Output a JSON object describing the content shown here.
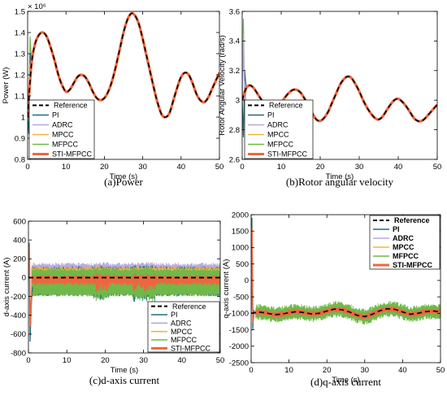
{
  "chart_data": [
    {
      "id": "a",
      "type": "line",
      "caption": "(a)Power",
      "xlabel": "Time (s)",
      "ylabel": "Power (W)",
      "exponent_label": "× 10⁶",
      "xlim": [
        0,
        50
      ],
      "ylim": [
        0.8,
        1.5
      ],
      "xticks": [
        0,
        10,
        20,
        30,
        40,
        50
      ],
      "yticks": [
        0.8,
        0.9,
        1,
        1.1,
        1.2,
        1.3,
        1.4,
        1.5
      ],
      "ytick_labels": [
        "0.8",
        "0.9",
        "1",
        "1.1",
        "1.2",
        "1.3",
        "1.4",
        "1.5"
      ],
      "legend_position": "bottom-left",
      "series": [
        {
          "name": "Reference",
          "color": "#000000",
          "style": "dashed"
        },
        {
          "name": "PI",
          "color": "#1f6f78"
        },
        {
          "name": "ADRC",
          "color": "#b9a7e0"
        },
        {
          "name": "MPCC",
          "color": "#f1b53b"
        },
        {
          "name": "MFPCC",
          "color": "#71b84a"
        },
        {
          "name": "STI-MFPCC",
          "color": "#ee6640"
        }
      ],
      "reference": {
        "x": [
          0,
          1,
          2,
          3,
          4,
          5,
          6,
          7,
          8,
          9,
          10,
          11,
          12,
          13,
          14,
          15,
          16,
          17,
          18,
          19,
          20,
          21,
          22,
          23,
          24,
          25,
          26,
          27,
          28,
          29,
          30,
          31,
          32,
          33,
          34,
          35,
          36,
          37,
          38,
          39,
          40,
          41,
          42,
          43,
          44,
          45,
          46,
          47,
          48,
          49,
          50
        ],
        "y": [
          1.0,
          1.25,
          1.35,
          1.39,
          1.4,
          1.38,
          1.33,
          1.27,
          1.2,
          1.15,
          1.12,
          1.13,
          1.16,
          1.19,
          1.2,
          1.19,
          1.16,
          1.12,
          1.09,
          1.08,
          1.09,
          1.12,
          1.17,
          1.24,
          1.32,
          1.4,
          1.46,
          1.49,
          1.48,
          1.44,
          1.37,
          1.29,
          1.21,
          1.13,
          1.06,
          1.01,
          1.0,
          1.02,
          1.08,
          1.14,
          1.19,
          1.21,
          1.2,
          1.16,
          1.11,
          1.08,
          1.07,
          1.09,
          1.13,
          1.17,
          1.21
        ]
      }
    },
    {
      "id": "b",
      "type": "line",
      "caption": "(b)Rotor angular velocity",
      "xlabel": "Time (s)",
      "ylabel": "Rotor Angular Velocity (rad/s)",
      "xlim": [
        0,
        50
      ],
      "ylim": [
        2.6,
        3.6
      ],
      "xticks": [
        0,
        10,
        20,
        30,
        40,
        50
      ],
      "yticks": [
        2.6,
        2.8,
        3,
        3.2,
        3.4,
        3.6
      ],
      "ytick_labels": [
        "2.6",
        "2.8",
        "3",
        "3.2",
        "3.4",
        "3.6"
      ],
      "legend_position": "bottom-left",
      "series": [
        {
          "name": "Reference",
          "color": "#000000",
          "style": "dashed"
        },
        {
          "name": "PI",
          "color": "#1f6f78"
        },
        {
          "name": "ADRC",
          "color": "#b9a7e0"
        },
        {
          "name": "MPCC",
          "color": "#f1b53b"
        },
        {
          "name": "MFPCC",
          "color": "#71b84a"
        },
        {
          "name": "STI-MFPCC",
          "color": "#ee6640"
        }
      ],
      "reference": {
        "x": [
          0,
          1,
          2,
          3,
          4,
          5,
          6,
          7,
          8,
          9,
          10,
          11,
          12,
          13,
          14,
          15,
          16,
          17,
          18,
          19,
          20,
          21,
          22,
          23,
          24,
          25,
          26,
          27,
          28,
          29,
          30,
          31,
          32,
          33,
          34,
          35,
          36,
          37,
          38,
          39,
          40,
          41,
          42,
          43,
          44,
          45,
          46,
          47,
          48,
          49,
          50
        ],
        "y": [
          3.0,
          3.08,
          3.1,
          3.08,
          3.04,
          3.0,
          2.96,
          2.93,
          2.92,
          2.94,
          2.98,
          3.02,
          3.05,
          3.07,
          3.07,
          3.05,
          3.01,
          2.96,
          2.91,
          2.87,
          2.86,
          2.88,
          2.92,
          2.98,
          3.04,
          3.1,
          3.14,
          3.16,
          3.15,
          3.11,
          3.06,
          3.0,
          2.95,
          2.91,
          2.88,
          2.87,
          2.89,
          2.93,
          2.97,
          3.0,
          3.01,
          2.99,
          2.96,
          2.92,
          2.88,
          2.86,
          2.86,
          2.88,
          2.91,
          2.94,
          2.97
        ]
      }
    },
    {
      "id": "c",
      "type": "line",
      "caption": "(c)d-axis current",
      "xlabel": "Time (s)",
      "ylabel": "d-axis current (A)",
      "xlim": [
        0,
        50
      ],
      "ylim": [
        -800,
        600
      ],
      "xticks": [
        0,
        10,
        20,
        30,
        40,
        50
      ],
      "yticks": [
        -800,
        -600,
        -400,
        -200,
        0,
        200,
        400,
        600
      ],
      "ytick_labels": [
        "-800",
        "-600",
        "-400",
        "-200",
        "0",
        "200",
        "400",
        "600"
      ],
      "legend_position": "bottom-right",
      "series": [
        {
          "name": "Reference",
          "color": "#000000",
          "style": "dashed",
          "value": 0
        },
        {
          "name": "PI",
          "color": "#1f6f78",
          "band": [
            -200,
            120
          ]
        },
        {
          "name": "ADRC",
          "color": "#b9a7e0",
          "band": [
            -150,
            160
          ]
        },
        {
          "name": "MPCC",
          "color": "#f1b53b",
          "band": [
            -120,
            120
          ]
        },
        {
          "name": "MFPCC",
          "color": "#71b84a",
          "band": [
            -200,
            100
          ]
        },
        {
          "name": "STI-MFPCC",
          "color": "#ee6640",
          "band": [
            -80,
            30
          ]
        }
      ]
    },
    {
      "id": "d",
      "type": "line",
      "caption": "(d)q-axis current",
      "xlabel": "Time (s)",
      "ylabel": "q-axis current (A)",
      "xlim": [
        0,
        50
      ],
      "ylim": [
        -2500,
        2000
      ],
      "xticks": [
        0,
        10,
        20,
        30,
        40,
        50
      ],
      "yticks": [
        -2500,
        -2000,
        -1500,
        -1000,
        -500,
        0,
        500,
        1000,
        1500,
        2000
      ],
      "ytick_labels": [
        "-2500",
        "-2000",
        "-1500",
        "-1000",
        "-500",
        "0",
        "500",
        "1000",
        "1500",
        "2000"
      ],
      "legend_position": "top-right",
      "series": [
        {
          "name": "Reference",
          "color": "#000000",
          "style": "dashed"
        },
        {
          "name": "PI",
          "color": "#1f6f78"
        },
        {
          "name": "ADRC",
          "color": "#b9a7e0"
        },
        {
          "name": "MPCC",
          "color": "#f1b53b"
        },
        {
          "name": "MFPCC",
          "color": "#71b84a",
          "band_halfwidth": 250
        },
        {
          "name": "STI-MFPCC",
          "color": "#ee6640",
          "band_halfwidth": 80
        }
      ],
      "reference": {
        "x": [
          0,
          2,
          4,
          6,
          8,
          10,
          12,
          14,
          16,
          18,
          20,
          22,
          24,
          26,
          28,
          30,
          32,
          34,
          36,
          38,
          40,
          42,
          44,
          46,
          48,
          50
        ],
        "y": [
          -1000,
          -960,
          -990,
          -1040,
          -1030,
          -980,
          -950,
          -980,
          -1020,
          -1000,
          -930,
          -870,
          -890,
          -960,
          -1060,
          -1100,
          -1030,
          -920,
          -860,
          -880,
          -960,
          -1030,
          -1000,
          -950,
          -930,
          -950
        ]
      }
    }
  ]
}
